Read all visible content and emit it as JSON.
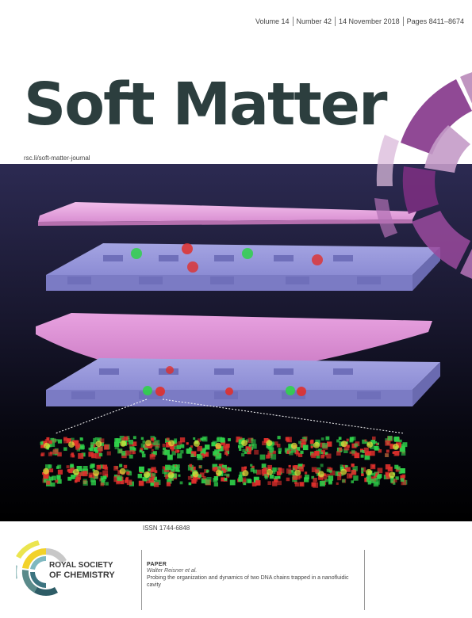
{
  "issue": {
    "volume": "Volume 14",
    "number": "Number 42",
    "date": "14 November 2018",
    "pages": "Pages 8411–8674"
  },
  "journal": {
    "title": "Soft Matter",
    "url": "rsc.li/soft-matter-journal",
    "issn": "ISSN 1744-6848"
  },
  "publisher": {
    "line1": "ROYAL SOCIETY",
    "line2": "OF CHEMISTRY"
  },
  "paper": {
    "label": "PAPER",
    "authors": "Walter Reisner et al.",
    "title": "Probing the organization and dynamics of two DNA chains trapped in a nanofluidic cavity"
  },
  "colors": {
    "title": "#2c3e3e",
    "accent_purple": "#8a3f8f",
    "slab": "#8f8fd6",
    "pink_plate": "#e9a7e2",
    "dna_green": "#2fd14a",
    "dna_red": "#e0302c"
  }
}
